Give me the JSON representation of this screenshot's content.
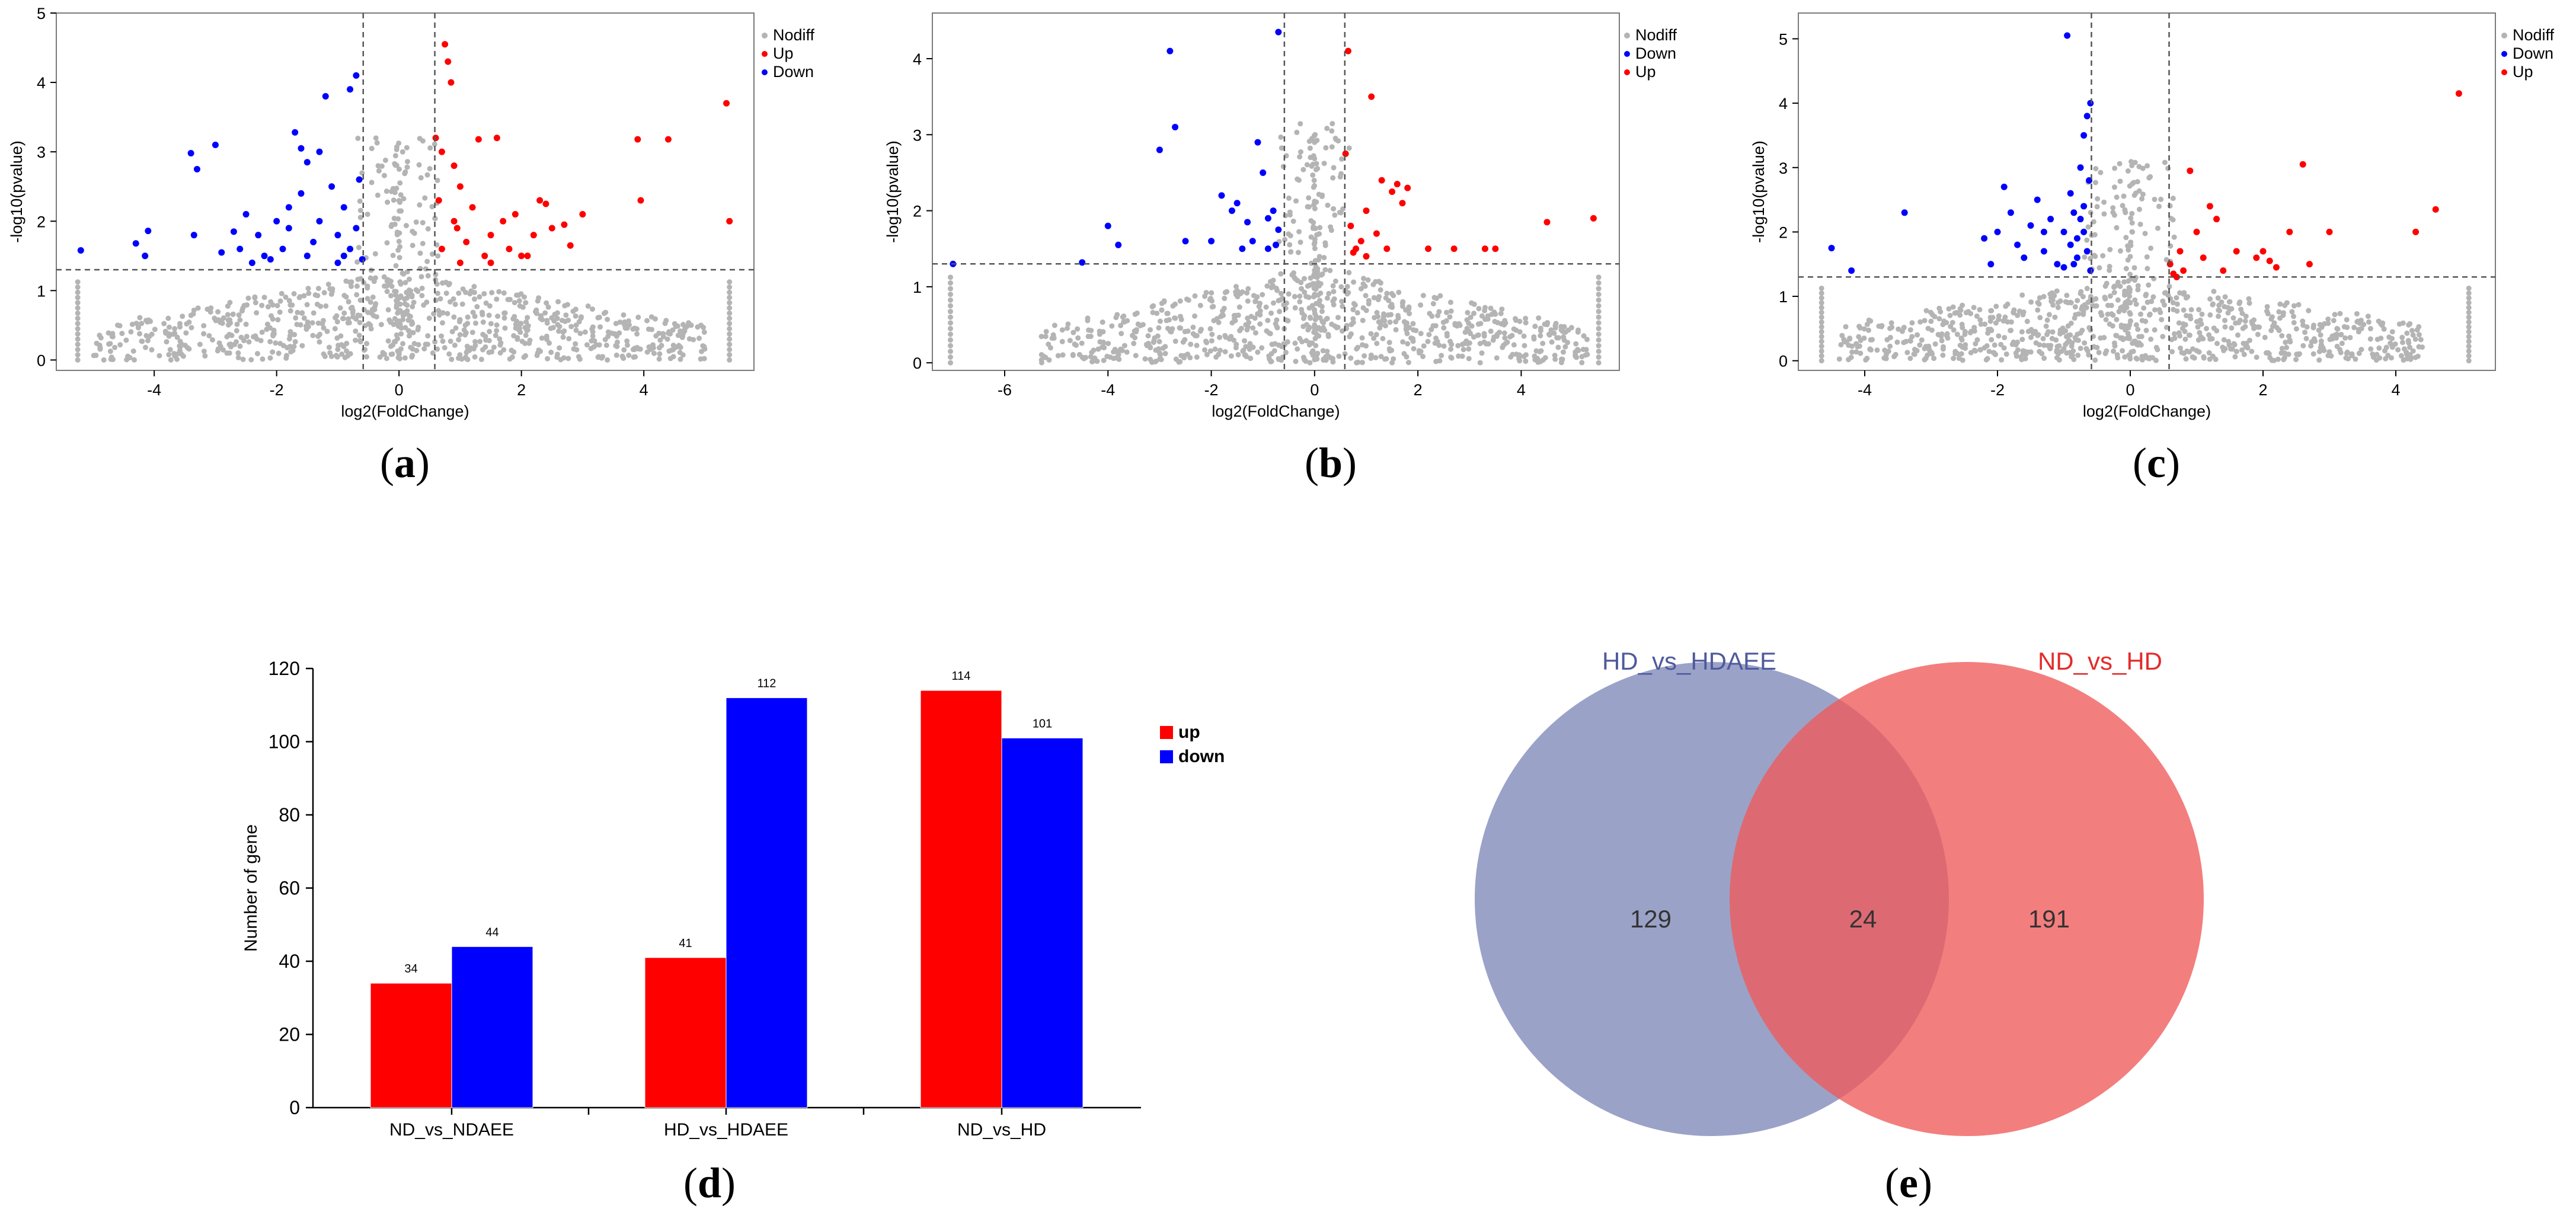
{
  "colors": {
    "nodiff": "#b4b4b4",
    "up": "#ff0000",
    "down": "#0000ff",
    "venn_left": "#7f88b8",
    "venn_right": "#f05a5a",
    "axis": "#000000",
    "threshold": "#555555"
  },
  "chart_data": [
    {
      "panel": "a",
      "type": "scatter",
      "panel_label": "a",
      "xlabel": "log2(FoldChange)",
      "ylabel": "-log10(pvalue)",
      "xlim": [
        -5.6,
        5.8
      ],
      "ylim": [
        -0.15,
        5
      ],
      "xticks": [
        -4,
        -2,
        0,
        2,
        4
      ],
      "yticks": [
        0,
        1,
        2,
        3,
        4,
        5
      ],
      "thresholds": {
        "x": [
          -0.585,
          0.585
        ],
        "y": 1.301
      },
      "legend": [
        {
          "name": "Nodiff",
          "color_key": "nodiff"
        },
        {
          "name": "Up",
          "color_key": "up"
        },
        {
          "name": "Down",
          "color_key": "down"
        }
      ],
      "series": [
        {
          "name": "Down",
          "color_key": "down",
          "points": [
            [
              -5.2,
              1.58
            ],
            [
              -4.3,
              1.68
            ],
            [
              -4.1,
              1.86
            ],
            [
              -4.15,
              1.5
            ],
            [
              -3.4,
              2.98
            ],
            [
              -3.3,
              2.75
            ],
            [
              -3.0,
              3.1
            ],
            [
              -3.35,
              1.8
            ],
            [
              -2.9,
              1.55
            ],
            [
              -2.7,
              1.85
            ],
            [
              -2.6,
              1.6
            ],
            [
              -2.5,
              2.1
            ],
            [
              -2.4,
              1.4
            ],
            [
              -2.3,
              1.8
            ],
            [
              -2.2,
              1.5
            ],
            [
              -2.0,
              2.0
            ],
            [
              -1.9,
              1.6
            ],
            [
              -1.8,
              2.2
            ],
            [
              -1.7,
              3.28
            ],
            [
              -1.6,
              3.05
            ],
            [
              -1.5,
              2.85
            ],
            [
              -1.4,
              1.7
            ],
            [
              -1.3,
              3.0
            ],
            [
              -1.2,
              3.8
            ],
            [
              -1.1,
              2.5
            ],
            [
              -1.0,
              1.8
            ],
            [
              -0.9,
              2.2
            ],
            [
              -0.8,
              3.9
            ],
            [
              -0.7,
              4.1
            ],
            [
              -0.65,
              2.6
            ],
            [
              -0.6,
              1.45
            ],
            [
              -1.5,
              1.5
            ],
            [
              -1.0,
              1.4
            ],
            [
              -0.8,
              1.6
            ],
            [
              -2.1,
              1.45
            ],
            [
              -1.8,
              1.9
            ],
            [
              -1.6,
              2.4
            ],
            [
              -1.3,
              2.0
            ],
            [
              -0.9,
              1.5
            ],
            [
              -0.7,
              1.9
            ]
          ]
        },
        {
          "name": "Up",
          "color_key": "up",
          "points": [
            [
              0.6,
              3.2
            ],
            [
              0.65,
              2.3
            ],
            [
              0.7,
              3.0
            ],
            [
              0.75,
              4.55
            ],
            [
              0.8,
              4.3
            ],
            [
              0.85,
              4.0
            ],
            [
              0.9,
              2.8
            ],
            [
              0.95,
              1.9
            ],
            [
              1.0,
              2.5
            ],
            [
              1.1,
              1.7
            ],
            [
              1.2,
              2.2
            ],
            [
              1.3,
              3.18
            ],
            [
              1.4,
              1.5
            ],
            [
              1.5,
              1.8
            ],
            [
              1.6,
              3.2
            ],
            [
              1.7,
              2.0
            ],
            [
              1.8,
              1.6
            ],
            [
              1.9,
              2.1
            ],
            [
              2.0,
              1.5
            ],
            [
              2.2,
              1.8
            ],
            [
              2.3,
              2.3
            ],
            [
              2.4,
              2.25
            ],
            [
              2.5,
              1.9
            ],
            [
              2.7,
              1.95
            ],
            [
              2.8,
              1.65
            ],
            [
              3.0,
              2.1
            ],
            [
              3.9,
              3.18
            ],
            [
              3.95,
              2.3
            ],
            [
              4.4,
              3.18
            ],
            [
              5.35,
              3.7
            ],
            [
              5.4,
              2.0
            ],
            [
              1.0,
              1.4
            ],
            [
              0.7,
              1.6
            ],
            [
              1.5,
              1.4
            ],
            [
              2.1,
              1.5
            ],
            [
              0.9,
              2.0
            ]
          ]
        }
      ]
    },
    {
      "panel": "b",
      "type": "scatter",
      "panel_label": "b",
      "xlabel": "log2(FoldChange)",
      "ylabel": "-log10(pvalue)",
      "xlim": [
        -7.4,
        5.9
      ],
      "ylim": [
        -0.1,
        4.6
      ],
      "xticks": [
        -6,
        -4,
        -2,
        0,
        2,
        4
      ],
      "yticks": [
        0,
        1,
        2,
        3,
        4
      ],
      "thresholds": {
        "x": [
          -0.585,
          0.585
        ],
        "y": 1.301
      },
      "legend": [
        {
          "name": "Nodiff",
          "color_key": "nodiff"
        },
        {
          "name": "Down",
          "color_key": "down"
        },
        {
          "name": "Up",
          "color_key": "up"
        }
      ],
      "series": [
        {
          "name": "Down",
          "color_key": "down",
          "points": [
            [
              -7.0,
              1.3
            ],
            [
              -4.5,
              1.32
            ],
            [
              -4.0,
              1.8
            ],
            [
              -3.8,
              1.55
            ],
            [
              -3.0,
              2.8
            ],
            [
              -2.8,
              4.1
            ],
            [
              -2.7,
              3.1
            ],
            [
              -2.5,
              1.6
            ],
            [
              -2.0,
              1.6
            ],
            [
              -1.8,
              2.2
            ],
            [
              -1.5,
              2.1
            ],
            [
              -1.3,
              1.85
            ],
            [
              -1.2,
              1.6
            ],
            [
              -1.1,
              2.9
            ],
            [
              -1.0,
              2.5
            ],
            [
              -0.9,
              1.9
            ],
            [
              -0.8,
              2.0
            ],
            [
              -0.75,
              1.55
            ],
            [
              -0.7,
              1.75
            ],
            [
              -0.7,
              4.35
            ],
            [
              -1.4,
              1.5
            ],
            [
              -0.9,
              1.5
            ],
            [
              -1.6,
              2.0
            ]
          ]
        },
        {
          "name": "Up",
          "color_key": "up",
          "points": [
            [
              0.6,
              2.75
            ],
            [
              0.65,
              4.1
            ],
            [
              0.7,
              1.8
            ],
            [
              0.8,
              1.5
            ],
            [
              0.9,
              1.6
            ],
            [
              1.0,
              2.0
            ],
            [
              1.1,
              3.5
            ],
            [
              1.2,
              1.7
            ],
            [
              1.3,
              2.4
            ],
            [
              1.4,
              1.5
            ],
            [
              1.5,
              2.25
            ],
            [
              1.6,
              2.35
            ],
            [
              1.7,
              2.1
            ],
            [
              1.8,
              2.3
            ],
            [
              2.2,
              1.5
            ],
            [
              2.7,
              1.5
            ],
            [
              3.3,
              1.5
            ],
            [
              3.5,
              1.5
            ],
            [
              4.5,
              1.85
            ],
            [
              5.4,
              1.9
            ],
            [
              0.75,
              1.45
            ],
            [
              1.0,
              1.4
            ]
          ]
        }
      ]
    },
    {
      "panel": "c",
      "type": "scatter",
      "panel_label": "c",
      "xlabel": "log2(FoldChange)",
      "ylabel": "-log10(pvalue)",
      "xlim": [
        -5.0,
        5.5
      ],
      "ylim": [
        -0.15,
        5.4
      ],
      "xticks": [
        -4,
        -2,
        0,
        2,
        4
      ],
      "yticks": [
        0,
        1,
        2,
        3,
        4,
        5
      ],
      "thresholds": {
        "x": [
          -0.585,
          0.585
        ],
        "y": 1.301
      },
      "legend": [
        {
          "name": "Nodiff",
          "color_key": "nodiff"
        },
        {
          "name": "Down",
          "color_key": "down"
        },
        {
          "name": "Up",
          "color_key": "up"
        }
      ],
      "series": [
        {
          "name": "Down",
          "color_key": "down",
          "points": [
            [
              -4.5,
              1.75
            ],
            [
              -4.2,
              1.4
            ],
            [
              -3.4,
              2.3
            ],
            [
              -2.2,
              1.9
            ],
            [
              -2.1,
              1.5
            ],
            [
              -2.0,
              2.0
            ],
            [
              -1.9,
              2.7
            ],
            [
              -1.8,
              2.3
            ],
            [
              -1.7,
              1.8
            ],
            [
              -1.6,
              1.6
            ],
            [
              -1.5,
              2.1
            ],
            [
              -1.4,
              2.5
            ],
            [
              -1.3,
              1.7
            ],
            [
              -1.2,
              2.2
            ],
            [
              -1.1,
              1.5
            ],
            [
              -1.0,
              2.0
            ],
            [
              -0.95,
              5.05
            ],
            [
              -0.9,
              2.6
            ],
            [
              -0.85,
              2.3
            ],
            [
              -0.8,
              1.9
            ],
            [
              -0.75,
              3.0
            ],
            [
              -0.7,
              3.5
            ],
            [
              -0.65,
              3.8
            ],
            [
              -0.6,
              4.0
            ],
            [
              -0.62,
              2.8
            ],
            [
              -0.7,
              2.0
            ],
            [
              -0.8,
              1.6
            ],
            [
              -0.6,
              1.4
            ],
            [
              -0.9,
              1.8
            ],
            [
              -1.0,
              1.45
            ],
            [
              -0.7,
              2.4
            ],
            [
              -0.65,
              1.7
            ],
            [
              -0.75,
              2.2
            ],
            [
              -0.85,
              1.5
            ],
            [
              -1.3,
              2.0
            ]
          ]
        },
        {
          "name": "Up",
          "color_key": "up",
          "points": [
            [
              0.6,
              1.5
            ],
            [
              0.7,
              1.3
            ],
            [
              0.75,
              1.7
            ],
            [
              0.8,
              1.4
            ],
            [
              0.9,
              2.95
            ],
            [
              1.0,
              2.0
            ],
            [
              1.1,
              1.6
            ],
            [
              1.2,
              2.4
            ],
            [
              1.3,
              2.2
            ],
            [
              1.4,
              1.4
            ],
            [
              1.6,
              1.7
            ],
            [
              2.0,
              1.7
            ],
            [
              2.1,
              1.55
            ],
            [
              2.2,
              1.45
            ],
            [
              2.4,
              2.0
            ],
            [
              2.6,
              3.05
            ],
            [
              2.7,
              1.5
            ],
            [
              3.0,
              2.0
            ],
            [
              4.3,
              2.0
            ],
            [
              4.6,
              2.35
            ],
            [
              4.95,
              4.15
            ],
            [
              0.65,
              1.35
            ],
            [
              1.9,
              1.6
            ]
          ]
        }
      ]
    },
    {
      "panel": "d",
      "type": "bar",
      "panel_label": "d",
      "categories": [
        "ND_vs_NDAEE",
        "HD_vs_HDAEE",
        "ND_vs_HD"
      ],
      "series": [
        {
          "name": "up",
          "color_key": "up",
          "values": [
            34,
            41,
            114
          ]
        },
        {
          "name": "down",
          "color_key": "down",
          "values": [
            44,
            112,
            101
          ]
        }
      ],
      "ylabel": "Number of gene",
      "xlabel": "",
      "ylim": [
        0,
        120
      ],
      "yticks": [
        0,
        20,
        40,
        60,
        80,
        100,
        120
      ],
      "legend_position": "right"
    }
  ],
  "venn": {
    "panel_label": "e",
    "left_label": "HD_vs_HDAEE",
    "right_label": "ND_vs_HD",
    "left_only": "129",
    "overlap": "24",
    "right_only": "191"
  }
}
